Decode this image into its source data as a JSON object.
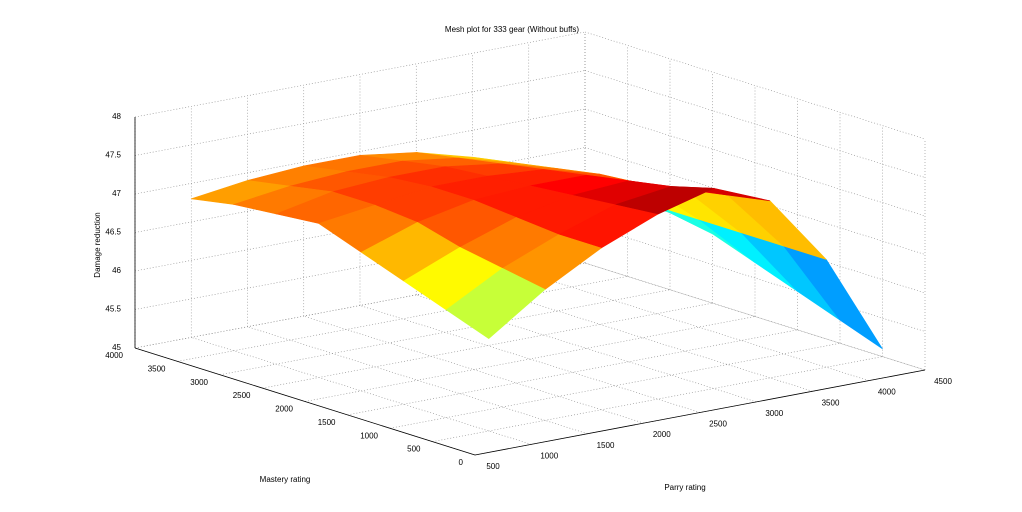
{
  "chart_data": {
    "type": "surface",
    "title": "Mesh plot for 333 gear (Without buffs)",
    "xlabel": "Parry rating",
    "ylabel": "Mastery rating",
    "zlabel": "Damage reduction",
    "x": [
      1000,
      1500,
      2000,
      2500,
      3000,
      3500,
      4000,
      4500
    ],
    "y": [
      500,
      1000,
      1500,
      2000,
      2500,
      3000,
      3500,
      4000
    ],
    "z": [
      [
        46.2,
        46.7,
        47.1,
        47.4,
        47.6,
        47.3,
        46.4,
        45.1
      ],
      [
        46.4,
        46.8,
        47.1,
        47.35,
        47.45,
        47.2,
        46.4,
        45.3
      ],
      [
        46.6,
        46.9,
        47.15,
        47.3,
        47.35,
        47.1,
        46.4,
        45.5
      ],
      [
        46.8,
        47.05,
        47.2,
        47.25,
        47.25,
        47.0,
        46.4,
        45.7
      ],
      [
        47.0,
        47.1,
        47.2,
        47.2,
        47.15,
        46.95,
        46.4,
        45.9
      ],
      [
        46.95,
        47.1,
        47.15,
        47.15,
        47.05,
        46.85,
        46.4,
        46.0
      ],
      [
        46.9,
        47.0,
        47.05,
        47.05,
        46.95,
        46.75,
        46.4,
        46.1
      ],
      [
        46.8,
        46.9,
        46.95,
        46.95,
        46.85,
        46.65,
        46.35,
        46.1
      ]
    ],
    "colormap": "jet",
    "xlim": [
      500,
      4500
    ],
    "ylim": [
      0,
      4000
    ],
    "zlim": [
      45,
      48
    ],
    "xticks": [
      500,
      1000,
      1500,
      2000,
      2500,
      3000,
      3500,
      4000,
      4500
    ],
    "yticks": [
      0,
      500,
      1000,
      1500,
      2000,
      2500,
      3000,
      3500,
      4000
    ],
    "zticks": [
      45,
      45.5,
      46,
      46.5,
      47,
      47.5,
      48
    ],
    "grid": true
  }
}
